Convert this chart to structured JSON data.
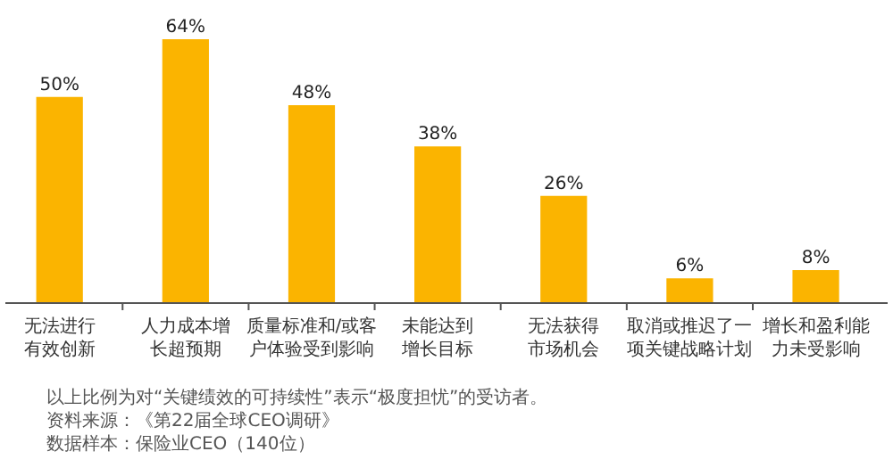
{
  "chart_data": {
    "type": "bar",
    "categories": [
      "无法进行有效创新",
      "人力成本增长超预期",
      "质量标准和/或客户体验受到影响",
      "未能达到增长目标",
      "无法获得市场机会",
      "取消或推迟了一项关键战略计划",
      "增长和盈利能力未受影响"
    ],
    "values": [
      50,
      64,
      48,
      38,
      26,
      6,
      8
    ],
    "value_labels": [
      "50%",
      "64%",
      "48%",
      "38%",
      "26%",
      "6%",
      "8%"
    ],
    "color": "#fbb400",
    "annotations": [
      "以上比例为对“关键绩效的可持续性”表示“极度担忧”的受访者。",
      "资料来源：《第22届全球CEO调研》",
      "数据样本：保险业CEO（140位）"
    ]
  }
}
